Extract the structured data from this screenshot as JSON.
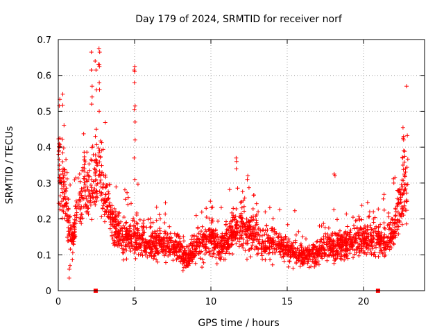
{
  "chart_data": {
    "type": "scatter",
    "title": "Day 179 of 2024, SRMTID for receiver norf",
    "xlabel": "GPS time / hours",
    "ylabel": "SRMTID / TECUs",
    "xlim": [
      0,
      24
    ],
    "ylim": [
      0,
      0.7
    ],
    "xticks": [
      0,
      5,
      10,
      15,
      20
    ],
    "yticks": [
      0,
      0.1,
      0.2,
      0.3,
      0.4,
      0.5,
      0.6,
      0.7
    ],
    "grid": true,
    "marker": "+",
    "color": "#ff0000",
    "trend": [
      [
        0.0,
        0.37
      ],
      [
        0.15,
        0.33
      ],
      [
        0.3,
        0.3
      ],
      [
        0.5,
        0.24
      ],
      [
        0.7,
        0.18
      ],
      [
        0.9,
        0.14
      ],
      [
        1.1,
        0.18
      ],
      [
        1.4,
        0.26
      ],
      [
        1.7,
        0.3
      ],
      [
        2.0,
        0.28
      ],
      [
        2.3,
        0.3
      ],
      [
        2.6,
        0.33
      ],
      [
        2.9,
        0.3
      ],
      [
        3.2,
        0.25
      ],
      [
        3.6,
        0.19
      ],
      [
        4.0,
        0.16
      ],
      [
        4.5,
        0.14
      ],
      [
        5.0,
        0.15
      ],
      [
        5.5,
        0.14
      ],
      [
        6.0,
        0.13
      ],
      [
        7.0,
        0.13
      ],
      [
        8.0,
        0.11
      ],
      [
        8.5,
        0.09
      ],
      [
        9.0,
        0.12
      ],
      [
        10.0,
        0.15
      ],
      [
        10.5,
        0.12
      ],
      [
        11.0,
        0.13
      ],
      [
        11.5,
        0.17
      ],
      [
        12.0,
        0.18
      ],
      [
        12.5,
        0.16
      ],
      [
        13.0,
        0.15
      ],
      [
        13.5,
        0.12
      ],
      [
        14.0,
        0.14
      ],
      [
        14.5,
        0.13
      ],
      [
        15.0,
        0.12
      ],
      [
        15.5,
        0.11
      ],
      [
        16.0,
        0.09
      ],
      [
        16.5,
        0.1
      ],
      [
        17.0,
        0.11
      ],
      [
        17.5,
        0.12
      ],
      [
        18.0,
        0.13
      ],
      [
        18.5,
        0.12
      ],
      [
        19.0,
        0.13
      ],
      [
        19.5,
        0.14
      ],
      [
        20.0,
        0.15
      ],
      [
        20.5,
        0.13
      ],
      [
        21.0,
        0.14
      ],
      [
        21.5,
        0.13
      ],
      [
        22.0,
        0.17
      ],
      [
        22.4,
        0.24
      ],
      [
        22.8,
        0.3
      ]
    ],
    "spikes": [
      {
        "x": 0.05,
        "values": [
          0.41,
          0.4,
          0.39,
          0.38
        ]
      },
      {
        "x": 0.75,
        "values": [
          0.035,
          0.06,
          0.07
        ]
      },
      {
        "x": 2.2,
        "values": [
          0.665,
          0.615,
          0.57,
          0.54,
          0.52
        ]
      },
      {
        "x": 2.45,
        "values": [
          0.64,
          0.615,
          0.45,
          0.43
        ]
      },
      {
        "x": 2.7,
        "values": [
          0.675,
          0.665,
          0.63,
          0.625,
          0.58,
          0.56,
          0.5
        ]
      },
      {
        "x": 5.0,
        "values": [
          0.625,
          0.615,
          0.61,
          0.58,
          0.515,
          0.505,
          0.47,
          0.42,
          0.37,
          0.31
        ]
      },
      {
        "x": 11.65,
        "values": [
          0.37,
          0.36,
          0.34
        ]
      },
      {
        "x": 12.4,
        "values": [
          0.32,
          0.31
        ]
      },
      {
        "x": 18.1,
        "values": [
          0.325,
          0.32
        ]
      },
      {
        "x": 22.6,
        "values": [
          0.455,
          0.43,
          0.425,
          0.42,
          0.39,
          0.37,
          0.35
        ]
      }
    ],
    "markers_on_axis": [
      {
        "x": 2.45,
        "y": 0
      },
      {
        "x": 20.95,
        "y": 0
      }
    ],
    "data_extent": [
      0,
      22.9
    ]
  }
}
